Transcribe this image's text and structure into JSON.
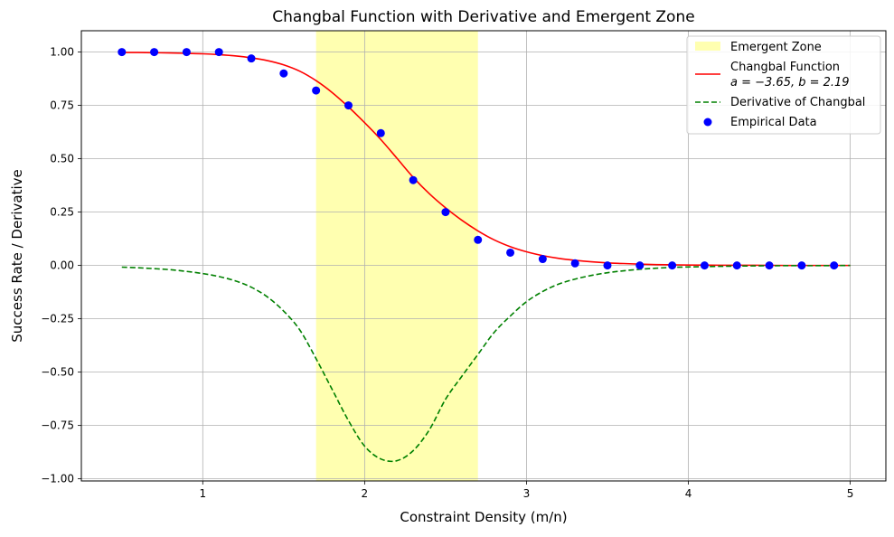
{
  "chart_data": {
    "type": "line",
    "title": "Changbal Function with Derivative and Emergent Zone",
    "xlabel": "Constraint Density (m/n)",
    "ylabel": "Success Rate / Derivative",
    "xlim": [
      0.25,
      5.22
    ],
    "ylim": [
      -1.01,
      1.1
    ],
    "grid": true,
    "legend_position": "top-right",
    "x_ticks": [
      {
        "value": 1,
        "label": "1"
      },
      {
        "value": 2,
        "label": "2"
      },
      {
        "value": 3,
        "label": "3"
      },
      {
        "value": 4,
        "label": "4"
      },
      {
        "value": 5,
        "label": "5"
      }
    ],
    "y_ticks": [
      {
        "value": 1.0,
        "label": "1.00"
      },
      {
        "value": 0.75,
        "label": "0.75"
      },
      {
        "value": 0.5,
        "label": "0.50"
      },
      {
        "value": 0.25,
        "label": "0.25"
      },
      {
        "value": 0.0,
        "label": "0.00"
      },
      {
        "value": -0.25,
        "label": "−0.25"
      },
      {
        "value": -0.5,
        "label": "−0.50"
      },
      {
        "value": -0.75,
        "label": "−0.75"
      },
      {
        "value": -1.0,
        "label": "−1.00"
      }
    ],
    "emergent_zone": {
      "name": "Emergent Zone",
      "x_start": 1.7,
      "x_end": 2.7,
      "color": "#ffffb0"
    },
    "function_params": {
      "a": -3.65,
      "b": 2.19
    },
    "series": [
      {
        "name": "Changbal Function",
        "legend_line2": "a = −3.65,  b = 2.19",
        "type": "line",
        "style": "solid",
        "color": "#ff0000",
        "x": [
          0.5,
          0.6,
          0.7,
          0.8,
          0.9,
          1.0,
          1.1,
          1.2,
          1.3,
          1.4,
          1.5,
          1.6,
          1.7,
          1.8,
          1.9,
          2.0,
          2.1,
          2.2,
          2.3,
          2.4,
          2.5,
          2.6,
          2.7,
          2.8,
          2.9,
          3.0,
          3.1,
          3.2,
          3.3,
          3.4,
          3.5,
          3.6,
          3.7,
          3.8,
          3.9,
          4.0,
          4.2,
          4.4,
          4.6,
          4.8,
          5.0
        ],
        "values": [
          0.998,
          0.998,
          0.997,
          0.996,
          0.994,
          0.992,
          0.988,
          0.982,
          0.973,
          0.96,
          0.94,
          0.91,
          0.866,
          0.81,
          0.743,
          0.669,
          0.59,
          0.502,
          0.413,
          0.336,
          0.27,
          0.212,
          0.162,
          0.12,
          0.088,
          0.064,
          0.046,
          0.033,
          0.024,
          0.017,
          0.012,
          0.009,
          0.006,
          0.004,
          0.003,
          0.002,
          0.001,
          0.001,
          0.0,
          0.0,
          0.0
        ]
      },
      {
        "name": "Derivative of Changbal",
        "type": "line",
        "style": "dashed",
        "color": "#008000",
        "x": [
          0.5,
          0.6,
          0.7,
          0.8,
          0.9,
          1.0,
          1.1,
          1.2,
          1.3,
          1.4,
          1.5,
          1.6,
          1.7,
          1.8,
          1.9,
          2.0,
          2.1,
          2.2,
          2.3,
          2.4,
          2.5,
          2.6,
          2.7,
          2.8,
          2.9,
          3.0,
          3.1,
          3.2,
          3.3,
          3.4,
          3.5,
          3.6,
          3.7,
          3.8,
          3.9,
          4.0,
          4.2,
          4.4,
          4.6,
          4.8,
          5.0
        ],
        "values": [
          -0.008,
          -0.011,
          -0.015,
          -0.02,
          -0.028,
          -0.038,
          -0.052,
          -0.072,
          -0.102,
          -0.148,
          -0.214,
          -0.303,
          -0.437,
          -0.582,
          -0.727,
          -0.847,
          -0.907,
          -0.915,
          -0.868,
          -0.77,
          -0.627,
          -0.52,
          -0.417,
          -0.314,
          -0.237,
          -0.17,
          -0.122,
          -0.087,
          -0.064,
          -0.047,
          -0.034,
          -0.025,
          -0.018,
          -0.013,
          -0.009,
          -0.007,
          -0.004,
          -0.002,
          -0.001,
          -0.001,
          0.0
        ]
      },
      {
        "name": "Empirical Data",
        "type": "scatter",
        "color": "#0000ff",
        "x": [
          0.5,
          0.7,
          0.9,
          1.1,
          1.3,
          1.5,
          1.7,
          1.9,
          2.1,
          2.3,
          2.5,
          2.7,
          2.9,
          3.1,
          3.3,
          3.5,
          3.7,
          3.9,
          4.1,
          4.3,
          4.5,
          4.7,
          4.9
        ],
        "values": [
          1.0,
          1.0,
          1.0,
          1.0,
          0.97,
          0.9,
          0.82,
          0.75,
          0.62,
          0.4,
          0.25,
          0.12,
          0.06,
          0.03,
          0.01,
          0.0,
          0.0,
          0.0,
          0.0,
          0.0,
          0.0,
          0.0,
          0.0
        ]
      }
    ]
  }
}
